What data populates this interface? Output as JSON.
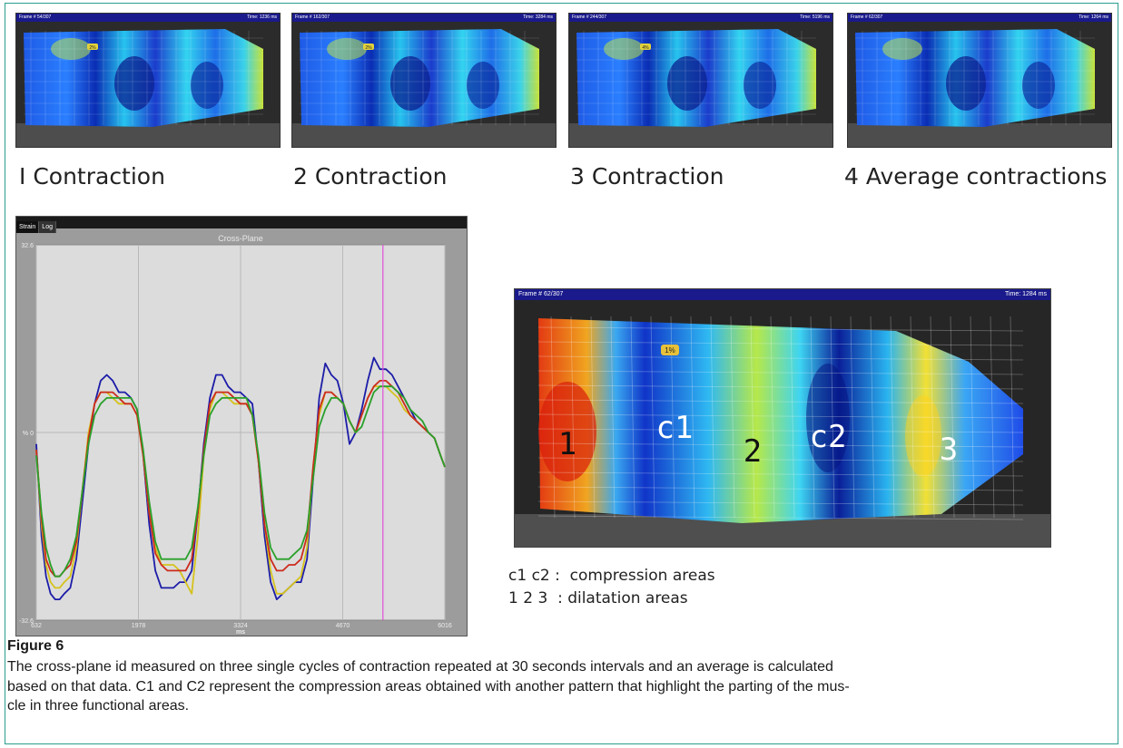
{
  "thumbnails": [
    {
      "frame": "Frame # 54/307",
      "time": "Time: 1236 ms",
      "badge": "2%",
      "caption": "I Contraction"
    },
    {
      "frame": "Frame # 162/307",
      "time": "Time: 3284 ms",
      "badge": "2%",
      "caption": "2 Contraction"
    },
    {
      "frame": "Frame # 244/307",
      "time": "Time: 5196 ms",
      "badge": "4%",
      "caption": "3 Contraction"
    },
    {
      "frame": "Frame # 62/307",
      "time": "Time: 1264 ms",
      "badge": "",
      "caption": "4 Average contractions"
    }
  ],
  "chart_panel": {
    "tabs": [
      "Strain",
      "Log"
    ],
    "active_tab": "Strain"
  },
  "chart_data": {
    "type": "line",
    "title": "Cross-Plane",
    "xlabel": "ms",
    "ylabel": "%",
    "xlim": [
      632,
      6016
    ],
    "ylim": [
      -32.6,
      32.6
    ],
    "x_ticks": [
      "632",
      "1978",
      "3324",
      "4670",
      "6016"
    ],
    "y_ticks": [
      "32.6",
      "0",
      "-32.6"
    ],
    "grid": true,
    "cursor_ms": 5200,
    "series": [
      {
        "color": "#1c1ca8",
        "x": [
          632,
          700,
          760,
          820,
          880,
          940,
          1000,
          1080,
          1160,
          1240,
          1320,
          1400,
          1480,
          1560,
          1640,
          1720,
          1800,
          1880,
          1960,
          2040,
          2120,
          2200,
          2280,
          2360,
          2440,
          2520,
          2600,
          2680,
          2760,
          2840,
          2920,
          3000,
          3080,
          3160,
          3240,
          3320,
          3400,
          3480,
          3560,
          3640,
          3720,
          3800,
          3880,
          3960,
          4040,
          4120,
          4200,
          4280,
          4360,
          4440,
          4520,
          4600,
          4680,
          4760,
          4840,
          4920,
          5000,
          5080,
          5160,
          5240,
          5320,
          5400,
          5480,
          5560,
          5640,
          5720,
          5800,
          5880,
          5960,
          6016
        ],
        "values": [
          -2,
          -18,
          -25,
          -28,
          -29,
          -29,
          -28,
          -27,
          -22,
          -12,
          -2,
          5,
          9,
          10,
          9,
          7,
          7,
          6,
          4,
          -4,
          -16,
          -24,
          -27,
          -27,
          -27,
          -26,
          -26,
          -24,
          -14,
          -2,
          6,
          10,
          10,
          8,
          7,
          7,
          6,
          5,
          -5,
          -18,
          -26,
          -29,
          -28,
          -27,
          -26,
          -26,
          -22,
          -8,
          6,
          12,
          10,
          9,
          5,
          -2,
          0,
          4,
          9,
          13,
          11,
          11,
          10,
          8,
          6,
          4,
          2,
          1,
          0,
          -1,
          -4,
          -6
        ]
      },
      {
        "color": "#d4c21c",
        "x": [
          632,
          700,
          760,
          820,
          880,
          940,
          1000,
          1080,
          1160,
          1240,
          1320,
          1400,
          1480,
          1560,
          1640,
          1720,
          1800,
          1880,
          1960,
          2040,
          2120,
          2200,
          2280,
          2360,
          2440,
          2520,
          2600,
          2680,
          2760,
          2840,
          2920,
          3000,
          3080,
          3160,
          3240,
          3320,
          3400,
          3480,
          3560,
          3640,
          3720,
          3800,
          3880,
          3960,
          4040,
          4120,
          4200,
          4280,
          4360,
          4440,
          4520,
          4600,
          4680,
          4760,
          4840,
          4920,
          5000,
          5080,
          5160,
          5240,
          5320,
          5400,
          5480,
          5560,
          5640,
          5720,
          5800,
          5880,
          5960,
          6016
        ],
        "values": [
          -3,
          -16,
          -23,
          -26,
          -27,
          -27,
          -26,
          -25,
          -20,
          -10,
          0,
          5,
          7,
          7,
          6,
          5,
          5,
          5,
          3,
          -4,
          -14,
          -20,
          -23,
          -23,
          -23,
          -24,
          -26,
          -28,
          -18,
          -4,
          4,
          7,
          7,
          6,
          5,
          5,
          5,
          3,
          -5,
          -16,
          -24,
          -28,
          -28,
          -27,
          -26,
          -25,
          -20,
          -6,
          3,
          7,
          7,
          6,
          5,
          2,
          0,
          3,
          6,
          8,
          8,
          8,
          7,
          6,
          4,
          3,
          2,
          1,
          0,
          -1,
          -4,
          -6
        ]
      },
      {
        "color": "#cc2a1c",
        "x": [
          632,
          700,
          760,
          820,
          880,
          940,
          1000,
          1080,
          1160,
          1240,
          1320,
          1400,
          1480,
          1560,
          1640,
          1720,
          1800,
          1880,
          1960,
          2040,
          2120,
          2200,
          2280,
          2360,
          2440,
          2520,
          2600,
          2680,
          2760,
          2840,
          2920,
          3000,
          3080,
          3160,
          3240,
          3320,
          3400,
          3480,
          3560,
          3640,
          3720,
          3800,
          3880,
          3960,
          4040,
          4120,
          4200,
          4280,
          4360,
          4440,
          4520,
          4600,
          4680,
          4760,
          4840,
          4920,
          5000,
          5080,
          5160,
          5240,
          5320,
          5400,
          5480,
          5560,
          5640,
          5720,
          5800,
          5880,
          5960,
          6016
        ],
        "values": [
          -3,
          -15,
          -22,
          -24,
          -25,
          -25,
          -24,
          -23,
          -19,
          -10,
          -1,
          5,
          7,
          7,
          7,
          6,
          5,
          5,
          3,
          -4,
          -14,
          -21,
          -23,
          -24,
          -24,
          -24,
          -24,
          -22,
          -14,
          -3,
          5,
          7,
          7,
          7,
          6,
          5,
          5,
          3,
          -5,
          -16,
          -22,
          -24,
          -24,
          -23,
          -23,
          -22,
          -18,
          -6,
          4,
          7,
          7,
          6,
          5,
          2,
          0,
          3,
          6,
          8,
          9,
          9,
          8,
          7,
          5,
          3,
          2,
          1,
          0,
          -1,
          -4,
          -6
        ]
      },
      {
        "color": "#2aa02a",
        "x": [
          632,
          700,
          760,
          820,
          880,
          940,
          1000,
          1080,
          1160,
          1240,
          1320,
          1400,
          1480,
          1560,
          1640,
          1720,
          1800,
          1880,
          1960,
          2040,
          2120,
          2200,
          2280,
          2360,
          2440,
          2520,
          2600,
          2680,
          2760,
          2840,
          2920,
          3000,
          3080,
          3160,
          3240,
          3320,
          3400,
          3480,
          3560,
          3640,
          3720,
          3800,
          3880,
          3960,
          4040,
          4120,
          4200,
          4280,
          4360,
          4440,
          4520,
          4600,
          4680,
          4760,
          4840,
          4920,
          5000,
          5080,
          5160,
          5240,
          5320,
          5400,
          5480,
          5560,
          5640,
          5720,
          5800,
          5880,
          5960,
          6016
        ],
        "values": [
          -4,
          -14,
          -20,
          -23,
          -25,
          -25,
          -24,
          -22,
          -18,
          -10,
          -2,
          3,
          5,
          6,
          6,
          6,
          6,
          6,
          4,
          -3,
          -12,
          -19,
          -22,
          -22,
          -22,
          -22,
          -22,
          -20,
          -13,
          -4,
          3,
          5,
          6,
          6,
          6,
          6,
          6,
          3,
          -4,
          -14,
          -20,
          -22,
          -22,
          -22,
          -21,
          -20,
          -17,
          -8,
          1,
          4,
          6,
          6,
          5,
          2,
          0,
          1,
          4,
          7,
          8,
          8,
          8,
          7,
          6,
          4,
          3,
          2,
          0,
          -1,
          -4,
          -6
        ]
      }
    ]
  },
  "heatmap": {
    "frame": "Frame # 62/307",
    "time": "Time: 1284 ms",
    "badge": "1%",
    "region_labels": [
      "1",
      "c1",
      "2",
      "c2",
      "3"
    ]
  },
  "legend": {
    "line1": "c1 c2 :  compression areas",
    "line2": "1 2 3  : dilatation areas"
  },
  "figure": {
    "title": "Figure 6",
    "caption_line1": "The cross-plane id measured on three single cycles of contraction repeated at 30 seconds intervals and an average is calculated",
    "caption_line2": "based on that data. C1 and C2 represent the compression areas obtained with another pattern that highlight the parting of the mus-",
    "caption_line3": "cle in three functional areas."
  }
}
